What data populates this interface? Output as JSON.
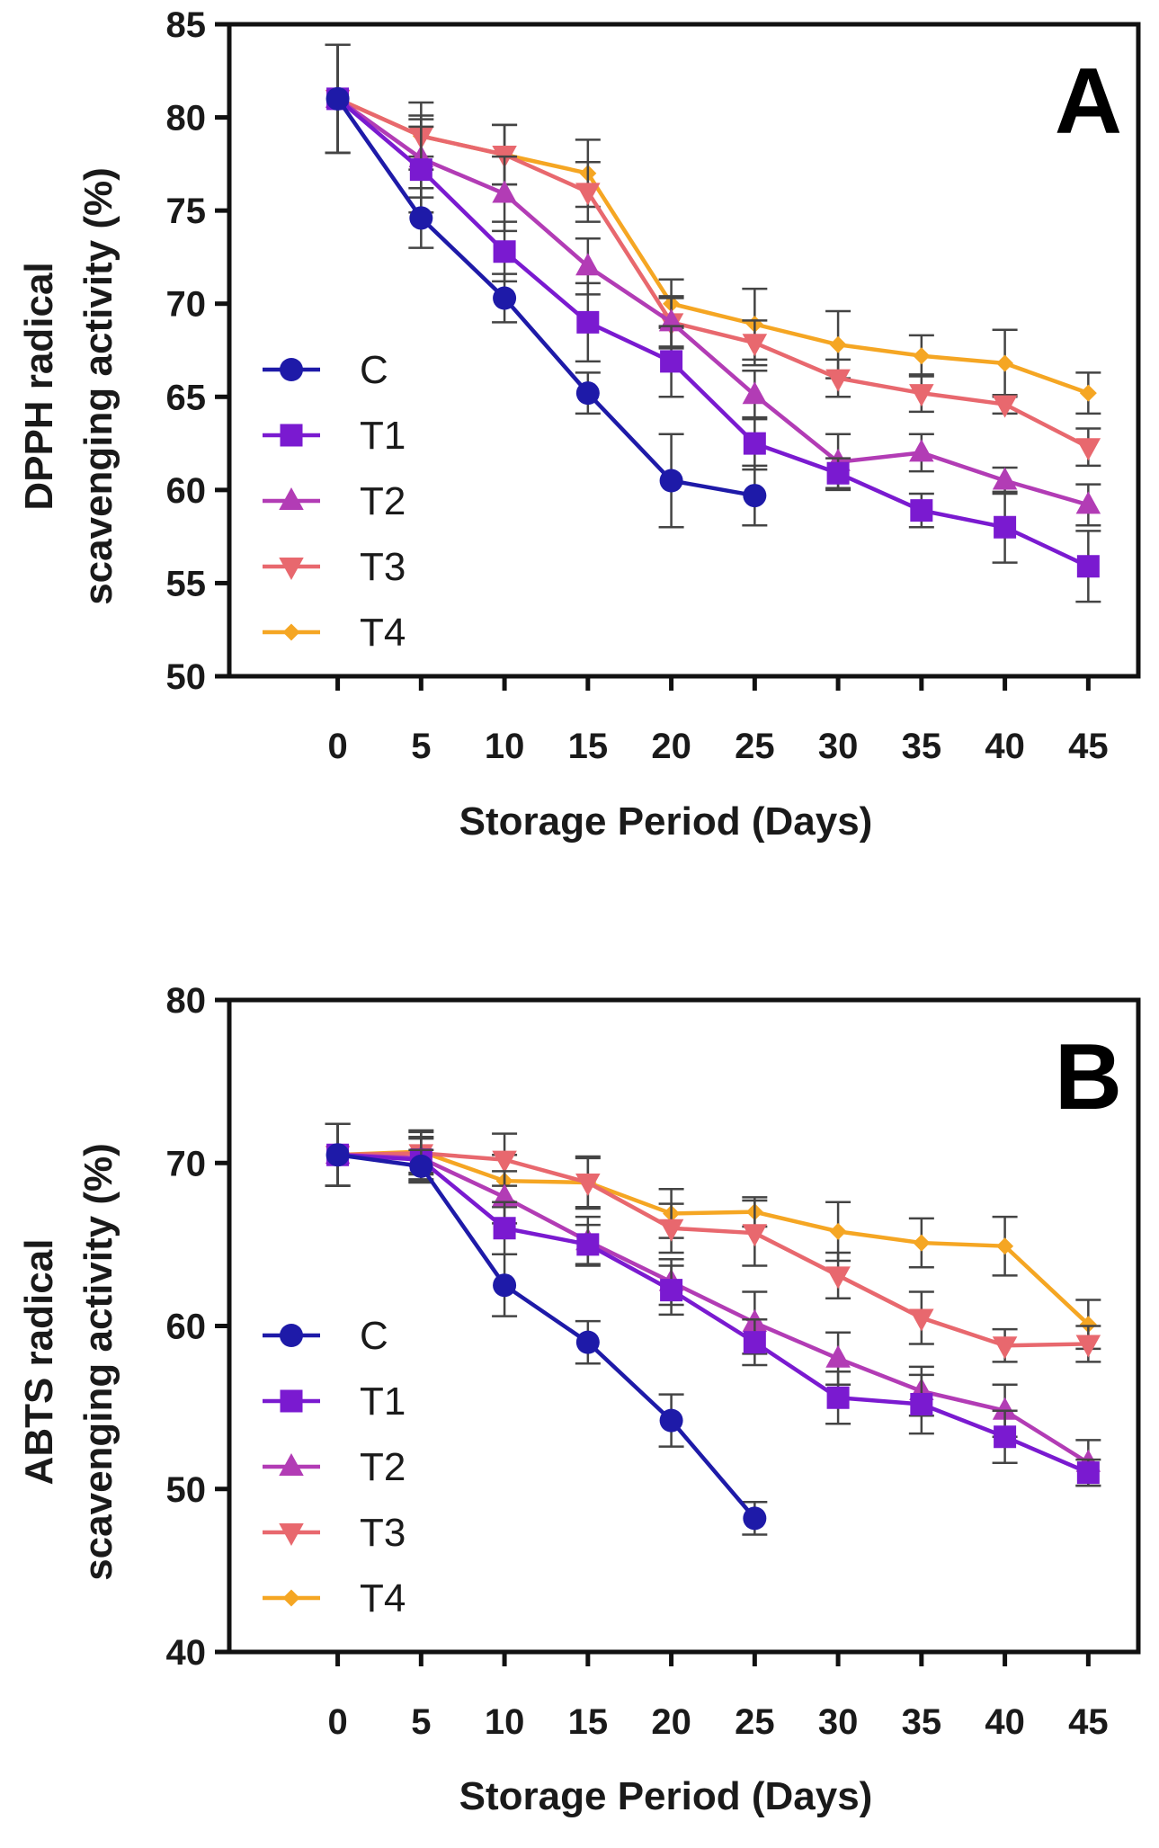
{
  "chart_data": [
    {
      "type": "line",
      "panel": "A",
      "xlabel": "Storage Period (Days)",
      "ylabel_lines": [
        "DPPH radical",
        "scavenging activity (%)"
      ],
      "xlim": [
        -6.5,
        48
      ],
      "ylim": [
        50,
        85
      ],
      "xticks": [
        0,
        5,
        10,
        15,
        20,
        25,
        30,
        35,
        40,
        45
      ],
      "yticks": [
        50,
        55,
        60,
        65,
        70,
        75,
        80,
        85
      ],
      "legend_position": "left",
      "series": [
        {
          "name": "C",
          "color": "#1e1aa8",
          "marker": "circle",
          "x": [
            0,
            5,
            10,
            15,
            20,
            25
          ],
          "y": [
            81,
            74.6,
            70.3,
            65.2,
            60.5,
            59.7
          ],
          "err": [
            2.9,
            1.6,
            1.3,
            1.1,
            2.5,
            1.6
          ]
        },
        {
          "name": "T1",
          "color": "#7a1ad0",
          "marker": "square",
          "x": [
            0,
            5,
            10,
            15,
            20,
            25,
            30,
            35,
            40,
            45
          ],
          "y": [
            81,
            77.2,
            72.8,
            69,
            66.9,
            62.5,
            60.9,
            58.9,
            58,
            55.9
          ],
          "err": [
            2.9,
            2.3,
            1.6,
            2.1,
            1.9,
            1.4,
            0.8,
            0.9,
            1.9,
            1.9
          ]
        },
        {
          "name": "T2",
          "color": "#b23cb5",
          "marker": "triangle-up",
          "x": [
            0,
            5,
            10,
            15,
            20,
            25,
            30,
            35,
            40,
            45
          ],
          "y": [
            81,
            77.8,
            75.9,
            72,
            69,
            65.1,
            61.5,
            62,
            60.5,
            59.2
          ],
          "err": [
            2.9,
            2.1,
            2,
            1.5,
            1.4,
            1.3,
            1.5,
            1,
            0.7,
            1.1
          ]
        },
        {
          "name": "T3",
          "color": "#e8686e",
          "marker": "triangle-down",
          "x": [
            0,
            5,
            10,
            15,
            20,
            25,
            30,
            35,
            40,
            45
          ],
          "y": [
            81,
            79,
            78,
            76,
            69,
            67.9,
            66,
            65.2,
            64.6,
            62.3
          ],
          "err": [
            2.9,
            1.1,
            1.6,
            1.6,
            1.3,
            1.2,
            1,
            1,
            0.5,
            1
          ]
        },
        {
          "name": "T4",
          "color": "#f5a623",
          "marker": "diamond",
          "x": [
            0,
            5,
            10,
            15,
            20,
            25,
            30,
            35,
            40,
            45
          ],
          "y": [
            81,
            79,
            78,
            77,
            70,
            68.9,
            67.8,
            67.2,
            66.8,
            65.2
          ],
          "err": [
            2.9,
            1.8,
            1.6,
            1.8,
            1.3,
            1.9,
            1.8,
            1.1,
            1.8,
            1.1
          ]
        }
      ]
    },
    {
      "type": "line",
      "panel": "B",
      "xlabel": "Storage Period (Days)",
      "ylabel_lines": [
        "ABTS radical",
        "scavenging activity (%)"
      ],
      "xlim": [
        -6.5,
        48
      ],
      "ylim": [
        40,
        80
      ],
      "xticks": [
        0,
        5,
        10,
        15,
        20,
        25,
        30,
        35,
        40,
        45
      ],
      "yticks": [
        40,
        50,
        60,
        70,
        80
      ],
      "legend_position": "left",
      "series": [
        {
          "name": "C",
          "color": "#1e1aa8",
          "marker": "circle",
          "x": [
            0,
            5,
            10,
            15,
            20,
            25
          ],
          "y": [
            70.5,
            69.8,
            62.5,
            59,
            54.2,
            48.2
          ],
          "err": [
            1.9,
            1,
            1.9,
            1.3,
            1.6,
            1
          ]
        },
        {
          "name": "T1",
          "color": "#7a1ad0",
          "marker": "square",
          "x": [
            0,
            5,
            10,
            15,
            20,
            25,
            30,
            35,
            40,
            45
          ],
          "y": [
            70.5,
            70.2,
            66,
            65,
            62.2,
            59,
            55.6,
            55.2,
            53.2,
            51
          ],
          "err": [
            1.9,
            1.3,
            1.6,
            1.2,
            1.5,
            1.4,
            1.6,
            1.8,
            1.6,
            0.8
          ]
        },
        {
          "name": "T2",
          "color": "#b23cb5",
          "marker": "triangle-up",
          "x": [
            0,
            5,
            10,
            15,
            20,
            25,
            30,
            35,
            40,
            45
          ],
          "y": [
            70.5,
            70.3,
            67.9,
            65.2,
            62.7,
            60.2,
            58,
            56,
            54.8,
            51.6
          ],
          "err": [
            1.9,
            1.3,
            1.6,
            1.5,
            1.4,
            1.9,
            1.6,
            1.5,
            1.6,
            1.4
          ]
        },
        {
          "name": "T3",
          "color": "#e8686e",
          "marker": "triangle-down",
          "x": [
            0,
            5,
            10,
            15,
            20,
            25,
            30,
            35,
            40,
            45
          ],
          "y": [
            70.5,
            70.6,
            70.2,
            68.8,
            66,
            65.7,
            63.1,
            60.5,
            58.8,
            58.9
          ],
          "err": [
            1.9,
            1.3,
            1.6,
            1.5,
            1.5,
            2,
            1.4,
            1.6,
            1,
            1.1
          ]
        },
        {
          "name": "T4",
          "color": "#f5a623",
          "marker": "diamond",
          "x": [
            0,
            5,
            10,
            15,
            20,
            25,
            30,
            35,
            40,
            45
          ],
          "y": [
            70.5,
            70.7,
            68.9,
            68.8,
            66.9,
            67,
            65.8,
            65.1,
            64.9,
            60.1
          ],
          "err": [
            1.9,
            1.3,
            1.6,
            1.6,
            1.5,
            0.9,
            1.8,
            1.5,
            1.8,
            1.5
          ]
        }
      ]
    }
  ]
}
